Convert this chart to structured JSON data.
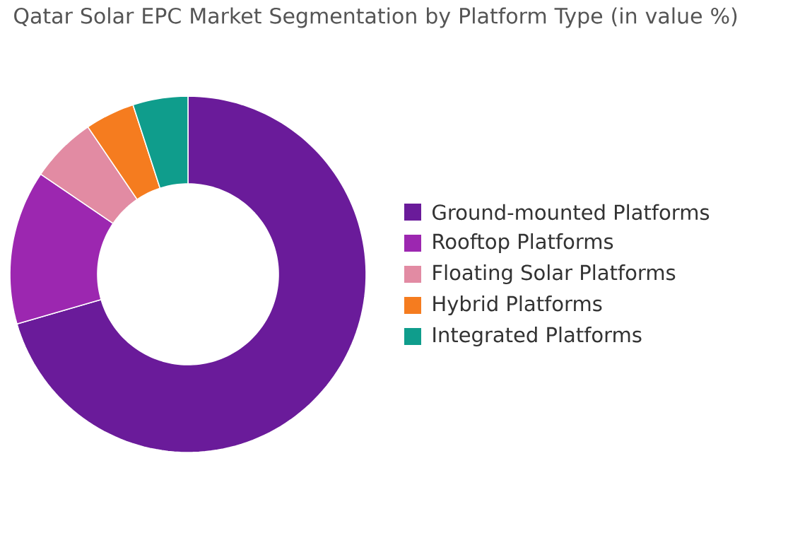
{
  "chart_data": {
    "type": "donut",
    "title": "Qatar Solar EPC Market Segmentation by Platform Type (in value %)",
    "categories": [
      "Ground-mounted Platforms",
      "Rooftop Platforms",
      "Floating Solar Platforms",
      "Hybrid Platforms",
      "Integrated Platforms"
    ],
    "values": [
      70.5,
      14,
      6,
      4.5,
      5
    ],
    "colors": [
      "#6a1b9a",
      "#9c27b0",
      "#e28ba3",
      "#f57c1f",
      "#0f9d8c"
    ],
    "legend": "right"
  }
}
